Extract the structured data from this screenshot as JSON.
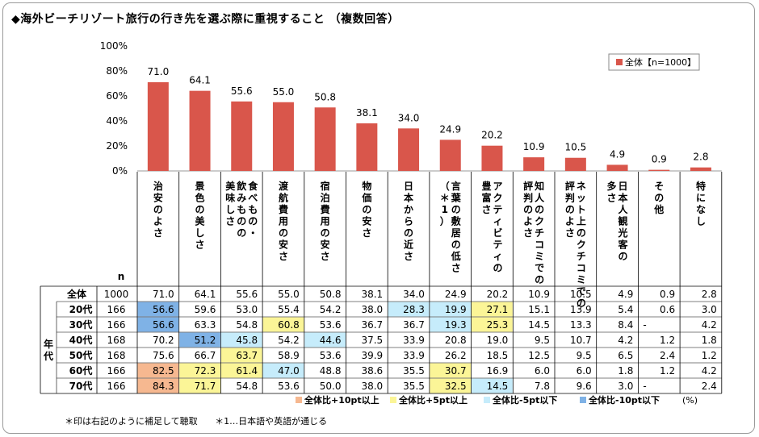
{
  "title": "◆海外ビーチリゾート旅行の行き先を選ぶ際に重視すること （複数回答）",
  "chart_data": {
    "type": "bar",
    "y_ticks": [
      "0%",
      "20%",
      "40%",
      "60%",
      "80%",
      "100%"
    ],
    "ylim": [
      0,
      100
    ],
    "legend": "全体【n=1000】",
    "categories": [
      "治安のよさ",
      "景色の美しさ",
      "食べもの・飲みものの美味しさ",
      "渡航費用の安さ",
      "宿泊費用の安さ",
      "物価の安さ",
      "日本からの近さ",
      "言葉の敷居の低さ（＊1）",
      "アクティビティの豊富さ",
      "知人のクチコミでの評判のよさ",
      "ネット上のクチコミでの評判のよさ",
      "日本人観光客の多さ",
      "その他",
      "特になし"
    ],
    "category_columns": [
      [
        "治",
        "安",
        "の",
        "よ",
        "さ"
      ],
      [
        "景",
        "色",
        "の",
        "美",
        "し",
        "さ"
      ],
      [
        "食",
        "べ",
        "も",
        "の",
        "・"
      ],
      [
        "渡",
        "航",
        "費",
        "用",
        "の",
        "安",
        "さ"
      ],
      [
        "宿",
        "泊",
        "費",
        "用",
        "の",
        "安",
        "さ"
      ],
      [
        "物",
        "価",
        "の",
        "安",
        "さ"
      ],
      [
        "日",
        "本",
        "か",
        "ら",
        "の",
        "近",
        "さ"
      ],
      [
        "言",
        "葉",
        "の",
        "敷",
        "居",
        "の",
        "低",
        "さ"
      ],
      [
        "ア",
        "ク",
        "テ",
        "ィ",
        "ビ",
        "テ",
        "ィ",
        "の"
      ],
      [
        "知",
        "人",
        "の",
        "ク",
        "チ",
        "コ",
        "ミ",
        "で",
        "の"
      ],
      [
        "ネ",
        "ッ",
        "ト",
        "上",
        "の",
        "ク",
        "チ",
        "コ",
        "ミ",
        "で",
        "の"
      ],
      [
        "日",
        "本",
        "人",
        "観",
        "光",
        "客",
        "の"
      ],
      [
        "そ",
        "の",
        "他"
      ],
      [
        "特",
        "に",
        "な",
        "し"
      ]
    ],
    "category_columns2": [
      [],
      [],
      [
        "飲",
        "み",
        "も",
        "の",
        "の"
      ],
      [],
      [],
      [],
      [],
      [
        "（",
        "＊",
        "1",
        "）"
      ],
      [
        "豊",
        "富",
        "さ"
      ],
      [
        "評",
        "判",
        "の",
        "よ",
        "さ"
      ],
      [
        "評",
        "判",
        "の",
        "よ",
        "さ"
      ],
      [
        "多",
        "さ"
      ],
      [],
      []
    ],
    "category_columns3": [
      [],
      [],
      [
        "美",
        "味",
        "し",
        "さ"
      ],
      [],
      [],
      [],
      [],
      [],
      [],
      [],
      [],
      [],
      []
    ],
    "values": [
      71.0,
      64.1,
      55.6,
      55.0,
      50.8,
      38.1,
      34.0,
      24.9,
      20.2,
      10.9,
      10.5,
      4.9,
      0.9,
      2.8
    ],
    "value_labels": [
      "71.0",
      "64.1",
      "55.6",
      "55.0",
      "50.8",
      "38.1",
      "34.0",
      "24.9",
      "20.2",
      "10.9",
      "10.5",
      "4.9",
      "0.9",
      "2.8"
    ],
    "bar_color": "#d9564b"
  },
  "table": {
    "n_header": "n",
    "group_label": [
      "年",
      "代"
    ],
    "rows": [
      {
        "label": "全体",
        "n": "1000",
        "values": [
          "71.0",
          "64.1",
          "55.6",
          "55.0",
          "50.8",
          "38.1",
          "34.0",
          "24.9",
          "20.2",
          "10.9",
          "10.5",
          "4.9",
          "0.9",
          "2.8"
        ]
      },
      {
        "label": "20代",
        "n": "166",
        "values": [
          "56.6",
          "59.6",
          "53.0",
          "55.4",
          "54.2",
          "38.0",
          "28.3",
          "19.9",
          "27.1",
          "15.1",
          "13.9",
          "5.4",
          "0.6",
          "3.0"
        ]
      },
      {
        "label": "30代",
        "n": "166",
        "values": [
          "56.6",
          "63.3",
          "54.8",
          "60.8",
          "53.6",
          "36.7",
          "36.7",
          "19.3",
          "25.3",
          "14.5",
          "13.3",
          "8.4",
          "-",
          "4.2"
        ]
      },
      {
        "label": "40代",
        "n": "168",
        "values": [
          "70.2",
          "51.2",
          "45.8",
          "54.2",
          "44.6",
          "37.5",
          "33.9",
          "20.8",
          "19.0",
          "9.5",
          "10.7",
          "4.2",
          "1.2",
          "1.8"
        ]
      },
      {
        "label": "50代",
        "n": "168",
        "values": [
          "75.6",
          "66.7",
          "63.7",
          "58.9",
          "53.6",
          "39.9",
          "33.9",
          "26.2",
          "18.5",
          "12.5",
          "9.5",
          "6.5",
          "2.4",
          "1.2"
        ]
      },
      {
        "label": "60代",
        "n": "166",
        "values": [
          "82.5",
          "72.3",
          "61.4",
          "47.0",
          "48.8",
          "38.6",
          "35.5",
          "30.7",
          "16.9",
          "6.0",
          "6.0",
          "1.8",
          "1.2",
          "4.2"
        ]
      },
      {
        "label": "70代",
        "n": "166",
        "values": [
          "84.3",
          "71.7",
          "54.8",
          "53.6",
          "50.0",
          "38.0",
          "35.5",
          "32.5",
          "14.5",
          "7.8",
          "9.6",
          "3.0",
          "-",
          "2.4"
        ]
      }
    ]
  },
  "legend_keys": [
    {
      "label": "全体比+10pt以上",
      "color": "#f6b890"
    },
    {
      "label": "全体比+5pt以上",
      "color": "#fbf597"
    },
    {
      "label": "全体比-5pt以下",
      "color": "#c6ecfb"
    },
    {
      "label": "全体比-10pt以下",
      "color": "#7fb2e6"
    }
  ],
  "unit": "(%)",
  "notes": [
    "＊印は右記のように補足して聴取",
    "＊1…日本語や英語が通じる"
  ]
}
